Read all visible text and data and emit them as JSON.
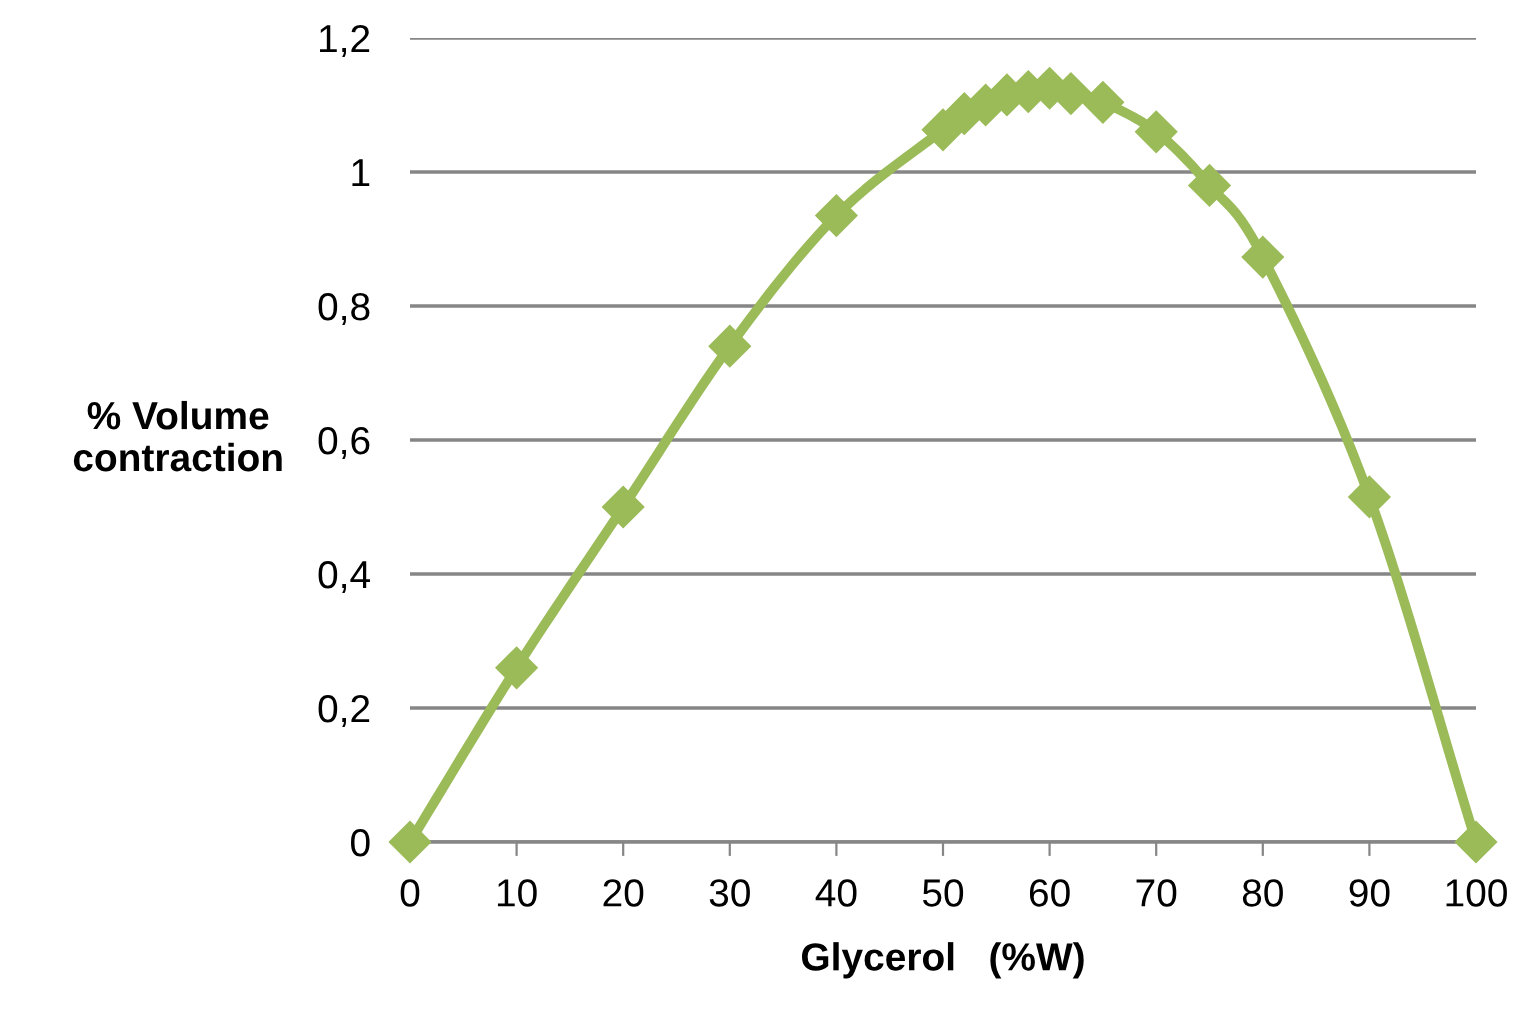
{
  "chart_data": {
    "type": "line",
    "xlabel": "Glycerol   (%W)",
    "ylabel": "% Volume\ncontraction",
    "x": [
      0,
      10,
      20,
      30,
      40,
      50,
      52,
      54,
      56,
      58,
      60,
      62,
      65,
      70,
      75,
      80,
      90,
      100
    ],
    "series": [
      {
        "color": "#9bbb59",
        "values": [
          0,
          0.26,
          0.5,
          0.74,
          0.935,
          1.063,
          1.087,
          1.1,
          1.115,
          1.12,
          1.125,
          1.117,
          1.104,
          1.06,
          0.98,
          0.873,
          0.515,
          0
        ]
      }
    ],
    "xlim": [
      0,
      100
    ],
    "xticks": [
      0,
      10,
      20,
      30,
      40,
      50,
      60,
      70,
      80,
      90,
      100
    ],
    "ylim": [
      0,
      1.2
    ],
    "yticks": [
      0,
      {
        "value": 0.2,
        "label": "0,2"
      },
      {
        "value": 0.4,
        "label": "0,4"
      },
      {
        "value": 0.6,
        "label": "0,6"
      },
      {
        "value": 0.8,
        "label": "0,8"
      },
      1,
      {
        "value": 1.2,
        "label": "1,2"
      }
    ],
    "grid": "y",
    "marker": "diamond",
    "line_style": "solid"
  }
}
